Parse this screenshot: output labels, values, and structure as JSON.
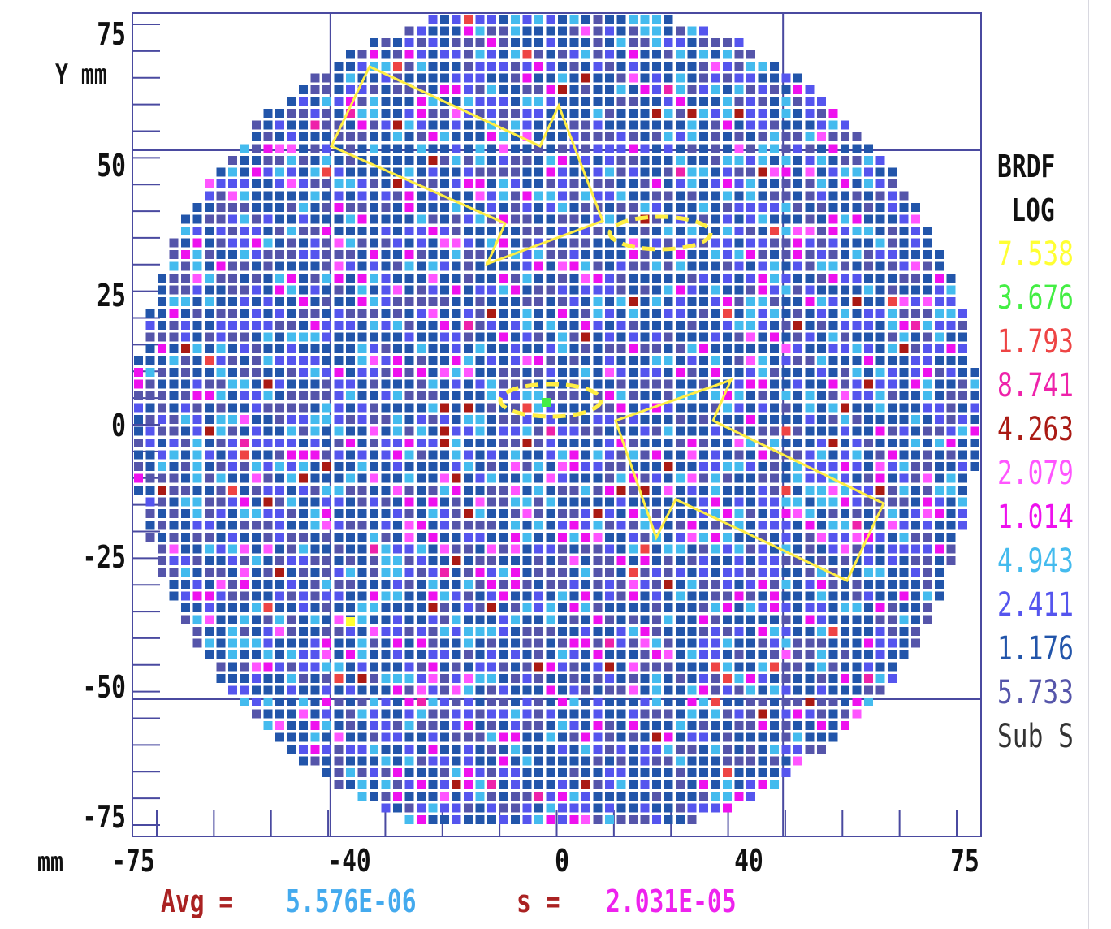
{
  "chart_data": {
    "type": "heatmap",
    "title": "",
    "xlabel": "mm",
    "ylabel": "Y mm",
    "xlim": [
      -75,
      75
    ],
    "ylim": [
      -75,
      75
    ],
    "x_ticks": [
      "-75",
      "-40",
      "0",
      "40",
      "75"
    ],
    "y_ticks": [
      "75",
      "50",
      "25",
      "0",
      "-25",
      "-50",
      "-75"
    ],
    "x_tick_values": [
      -75,
      -40,
      0,
      40,
      75
    ],
    "y_tick_values": [
      75,
      50,
      25,
      0,
      -25,
      -50,
      -75
    ],
    "grid": "on",
    "legend": {
      "title_line1": "BRDF",
      "title_line2": "LOG",
      "placement": "right",
      "entries": [
        {
          "label": "7.538",
          "color": "#ffff33"
        },
        {
          "label": "3.676",
          "color": "#44ee44"
        },
        {
          "label": "1.793",
          "color": "#ee4444"
        },
        {
          "label": "8.741",
          "color": "#ee22aa"
        },
        {
          "label": "4.263",
          "color": "#aa1a14"
        },
        {
          "label": "2.079",
          "color": "#ff55ff"
        },
        {
          "label": "1.014",
          "color": "#ee11ee"
        },
        {
          "label": "4.943",
          "color": "#44bbee"
        },
        {
          "label": "2.411",
          "color": "#5555ee"
        },
        {
          "label": "1.176",
          "color": "#2255aa"
        },
        {
          "label": "5.733",
          "color": "#5555aa"
        },
        {
          "label": "Sub S",
          "color": "#333333"
        }
      ]
    },
    "wafer_diameter_mm": 150,
    "stats": {
      "avg_label": "Avg =",
      "avg_value": "5.576E-06",
      "s_label": "s =",
      "s_value": "2.031E-05"
    }
  },
  "colors": {
    "frame": "#4a4aa0",
    "avg_label": "#aa2222",
    "avg_value": "#44aaee",
    "s_label": "#aa2222",
    "s_value": "#ee22ee",
    "annotation": "#ffee44"
  }
}
